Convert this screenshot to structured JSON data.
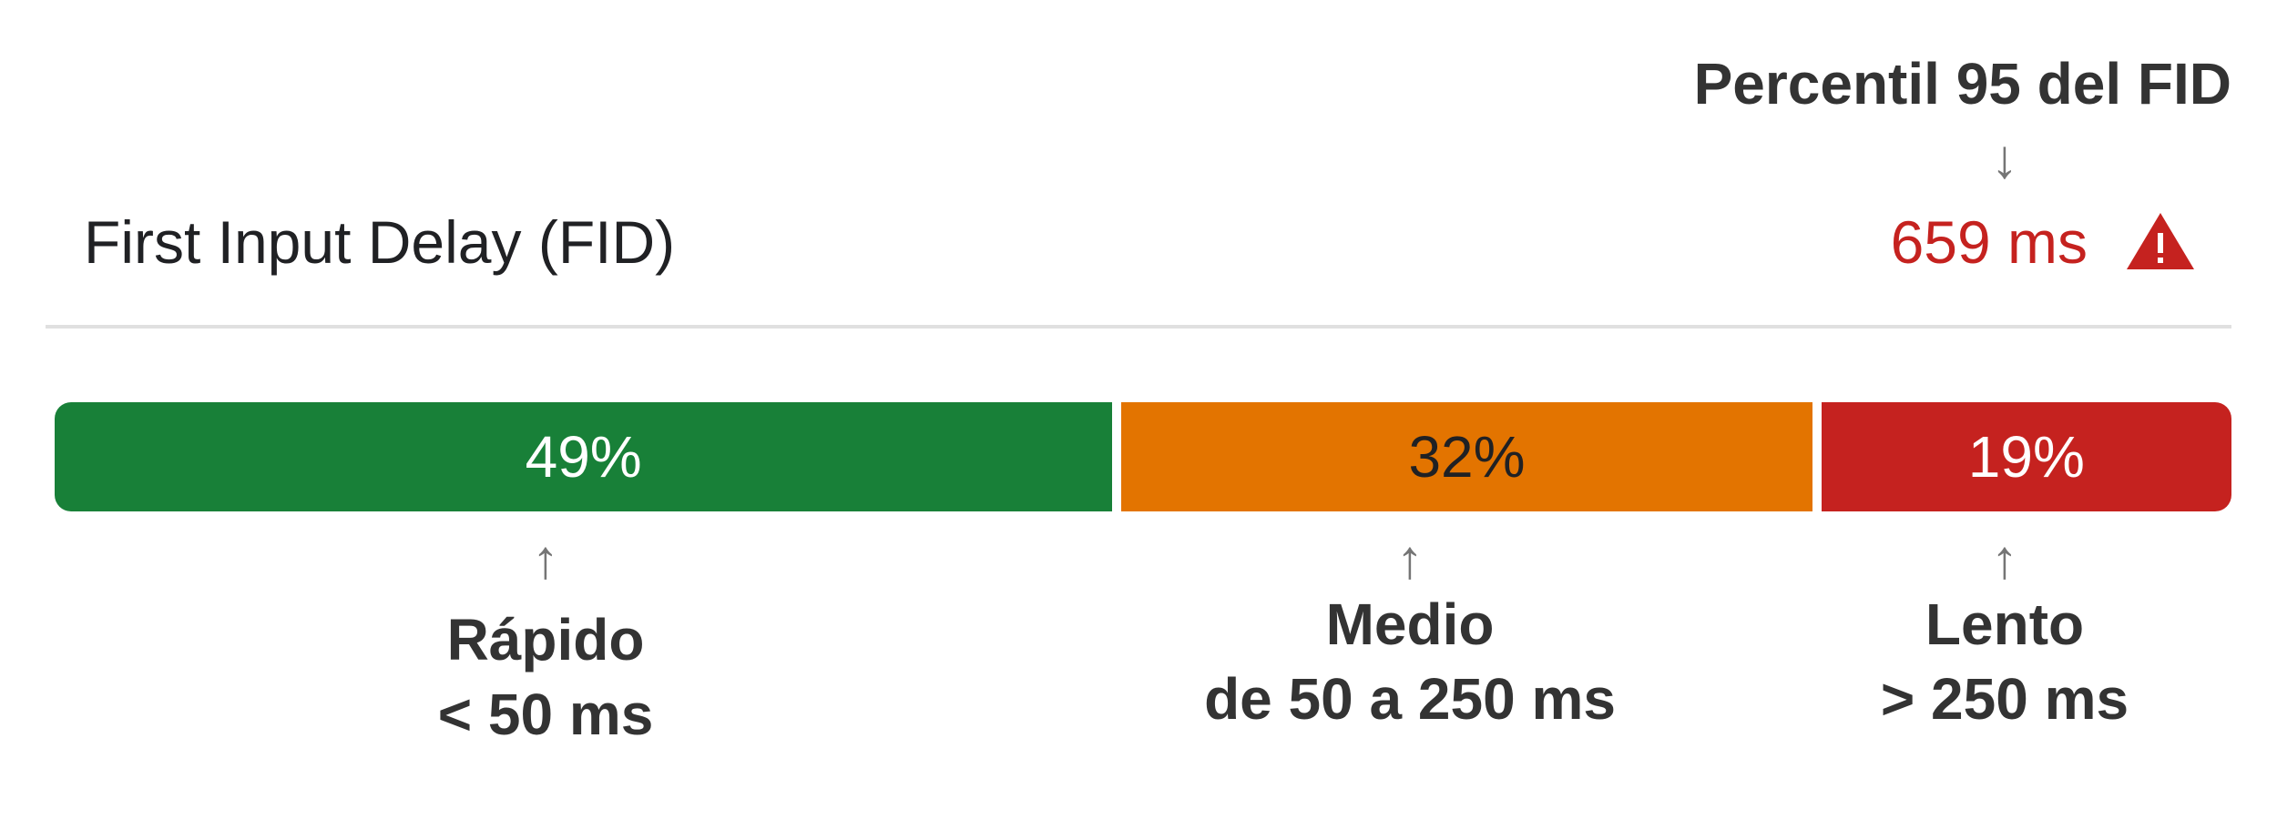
{
  "annotation": {
    "title": "Percentil 95 del FID",
    "arrow_down": "↓",
    "arrow_up": "↑"
  },
  "metric": {
    "label": "First Input Delay (FID)",
    "value": "659 ms",
    "value_color": "#c5221f",
    "status_icon": "warning-triangle-icon"
  },
  "distribution": [
    {
      "id": "fast",
      "percent": 49,
      "label": "49%",
      "color": "#188038",
      "text_color": "#ffffff",
      "category": "Rápido",
      "range": "< 50 ms"
    },
    {
      "id": "average",
      "percent": 32,
      "label": "32%",
      "color": "#e37400",
      "text_color": "#202124",
      "category": "Medio",
      "range": "de 50 a 250 ms"
    },
    {
      "id": "slow",
      "percent": 19,
      "label": "19%",
      "color": "#c5221f",
      "text_color": "#ffffff",
      "category": "Lento",
      "range": "> 250 ms"
    }
  ]
}
